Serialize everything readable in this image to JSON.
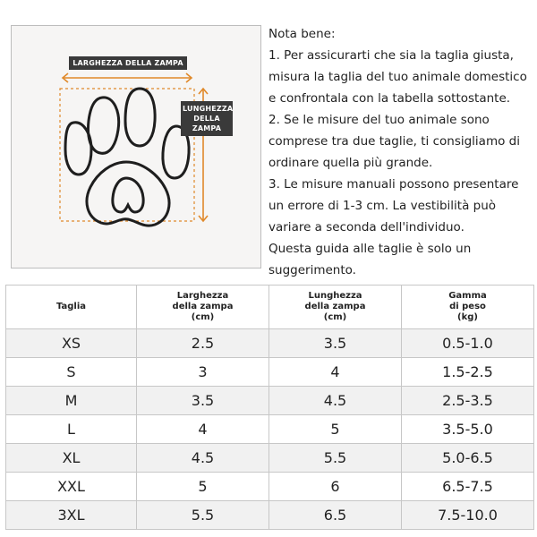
{
  "diagram": {
    "width_label": "LARGHEZZA DELLA ZAMPA",
    "length_label": "LUNGHEZZA DELLA ZAMPA",
    "accent_color": "#e0892a",
    "icon": "paw-print-icon"
  },
  "notes": {
    "heading": "Nota bene:",
    "lines": [
      "1. Per assicurarti che sia la taglia giusta,",
      "misura la taglia del tuo animale domestico",
      "e confrontala con la tabella sottostante.",
      "2. Se le misure del tuo animale sono",
      "comprese tra due taglie, ti consigliamo di",
      "ordinare quella più grande.",
      "3. Le misure manuali possono presentare",
      "un errore di 1-3 cm. La vestibilità può",
      "variare a seconda dell'individuo.",
      "Questa guida alle taglie è solo un",
      "suggerimento."
    ]
  },
  "table": {
    "headers": [
      [
        "Taglia"
      ],
      [
        "Larghezza",
        "della zampa",
        "(cm)"
      ],
      [
        "Lunghezza",
        "della zampa",
        "(cm)"
      ],
      [
        "Gamma",
        "di peso",
        "(kg)"
      ]
    ],
    "rows": [
      [
        "XS",
        "2.5",
        "3.5",
        "0.5-1.0"
      ],
      [
        "S",
        "3",
        "4",
        "1.5-2.5"
      ],
      [
        "M",
        "3.5",
        "4.5",
        "2.5-3.5"
      ],
      [
        "L",
        "4",
        "5",
        "3.5-5.0"
      ],
      [
        "XL",
        "4.5",
        "5.5",
        "5.0-6.5"
      ],
      [
        "XXL",
        "5",
        "6",
        "6.5-7.5"
      ],
      [
        "3XL",
        "5.5",
        "6.5",
        "7.5-10.0"
      ]
    ]
  }
}
